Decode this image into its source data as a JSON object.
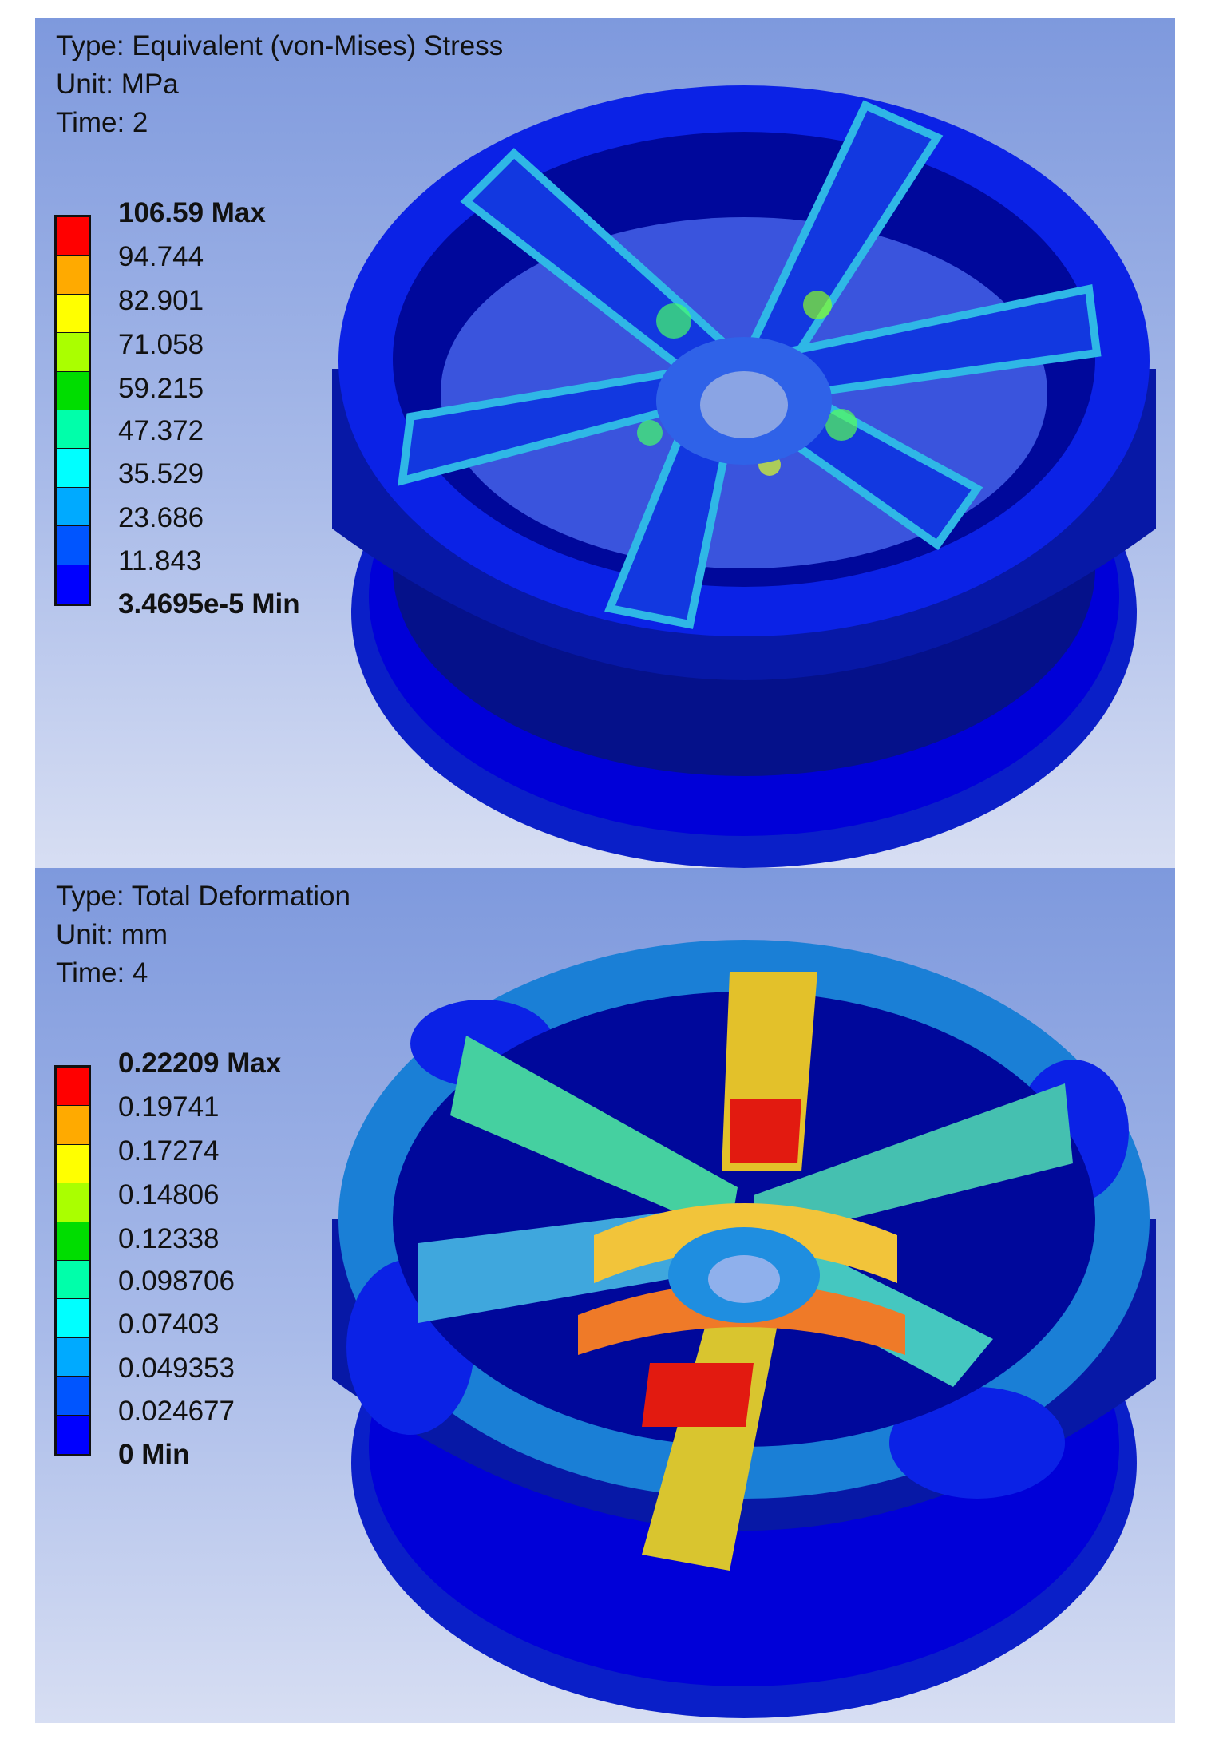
{
  "stress_view": {
    "info": {
      "type": "Type: Equivalent (von-Mises) Stress",
      "unit": "Unit: MPa",
      "time": "Time: 2"
    },
    "legend": {
      "max_label": "106.59 Max",
      "levels": [
        "94.744",
        "82.901",
        "71.058",
        "59.215",
        "47.372",
        "35.529",
        "23.686",
        "11.843"
      ],
      "min_label": "3.4695e-5 Min"
    }
  },
  "deformation_view": {
    "info": {
      "type": "Type: Total Deformation",
      "unit": "Unit: mm",
      "time": "Time: 4"
    },
    "legend": {
      "max_label": "0.22209 Max",
      "levels": [
        "0.19741",
        "0.17274",
        "0.14806",
        "0.12338",
        "0.098706",
        "0.07403",
        "0.049353",
        "0.024677"
      ],
      "min_label": "0 Min"
    }
  },
  "colors": {
    "bands_top_to_bottom": [
      "#ff0000",
      "#ffaa00",
      "#ffff00",
      "#aaff00",
      "#00dd00",
      "#00ffaa",
      "#00ffff",
      "#00aaff",
      "#0055ff",
      "#0000ff"
    ],
    "background_top": "#7e99dd",
    "background_bottom": "#d7def3"
  }
}
